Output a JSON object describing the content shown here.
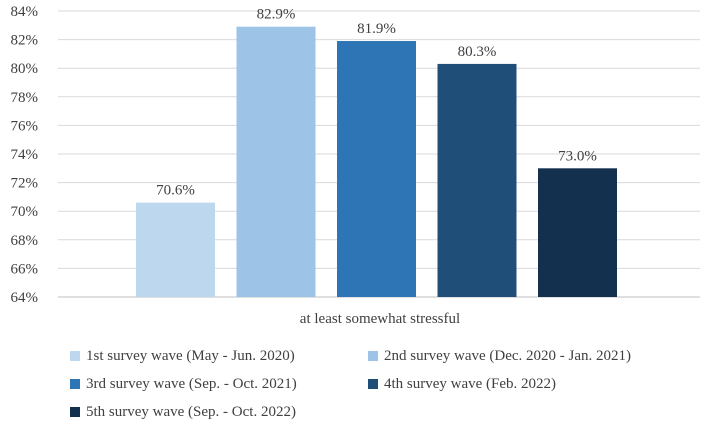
{
  "chart_data": {
    "type": "bar",
    "categories": [
      "at least somewhat stressful"
    ],
    "series": [
      {
        "name": "1st survey wave (May - Jun. 2020)",
        "values": [
          70.6
        ],
        "color": "#bdd7ee",
        "label": "70.6%"
      },
      {
        "name": "2nd survey wave (Dec. 2020 - Jan. 2021)",
        "values": [
          82.9
        ],
        "color": "#9dc3e6",
        "label": "82.9%"
      },
      {
        "name": "3rd survey wave (Sep. - Oct. 2021)",
        "values": [
          81.9
        ],
        "color": "#2e75b6",
        "label": "81.9%"
      },
      {
        "name": "4th survey wave (Feb. 2022)",
        "values": [
          80.3
        ],
        "color": "#1f4e79",
        "label": "80.3%"
      },
      {
        "name": "5th survey wave (Sep. - Oct. 2022)",
        "values": [
          73.0
        ],
        "color": "#14304f",
        "label": "73.0%"
      }
    ],
    "ylim": [
      64,
      84
    ],
    "yticks": [
      "64%",
      "66%",
      "68%",
      "70%",
      "72%",
      "74%",
      "76%",
      "78%",
      "80%",
      "82%",
      "84%"
    ],
    "ytick_values": [
      64,
      66,
      68,
      70,
      72,
      74,
      76,
      78,
      80,
      82,
      84
    ],
    "xlabel": "at least somewhat stressful",
    "ylabel": "",
    "title": "",
    "grid": true,
    "legend_position": "bottom"
  }
}
